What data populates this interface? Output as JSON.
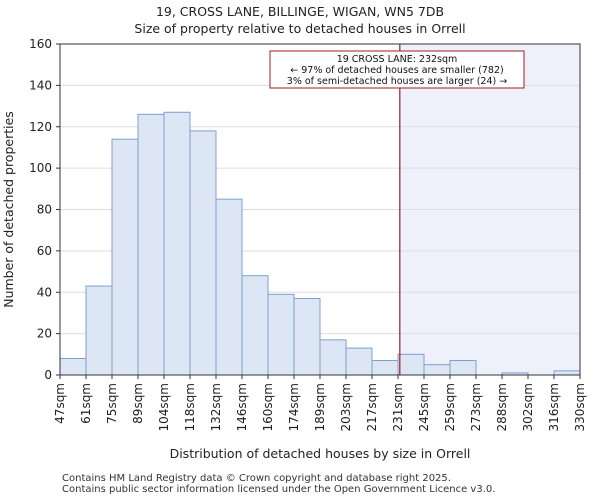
{
  "title": {
    "line1": "19, CROSS LANE, BILLINGE, WIGAN, WN5 7DB",
    "line2": "Size of property relative to detached houses in Orrell"
  },
  "footer": {
    "line1": "Contains HM Land Registry data © Crown copyright and database right 2025.",
    "line2": "Contains public sector information licensed under the Open Government Licence v3.0."
  },
  "colors": {
    "bar_fill": "#dce6f5",
    "bar_stroke": "#7f9fcf",
    "marker": "#a01d1d",
    "highlight_region": "#eef1fb",
    "grid": "#dddddd"
  },
  "chart_data": {
    "type": "bar",
    "title": "Size of property relative to detached houses in Orrell",
    "xlabel": "Distribution of detached houses by size in Orrell",
    "ylabel": "Number of detached properties",
    "ylim": [
      0,
      160
    ],
    "yticks": [
      0,
      20,
      40,
      60,
      80,
      100,
      120,
      140,
      160
    ],
    "bin_edges": [
      "47sqm",
      "61sqm",
      "75sqm",
      "89sqm",
      "104sqm",
      "118sqm",
      "132sqm",
      "146sqm",
      "160sqm",
      "174sqm",
      "189sqm",
      "203sqm",
      "217sqm",
      "231sqm",
      "245sqm",
      "259sqm",
      "273sqm",
      "288sqm",
      "302sqm",
      "316sqm",
      "330sqm"
    ],
    "values": [
      8,
      43,
      114,
      126,
      127,
      118,
      85,
      48,
      39,
      37,
      17,
      13,
      7,
      10,
      5,
      7,
      0,
      1,
      0,
      2
    ],
    "grid": true,
    "marker": {
      "value_sqm": 232,
      "position_index": 13.07
    },
    "annotation": {
      "line1": "19 CROSS LANE: 232sqm",
      "line2": "← 97% of detached houses are smaller (782)",
      "line3": "3% of semi-detached houses are larger (24) →"
    }
  }
}
